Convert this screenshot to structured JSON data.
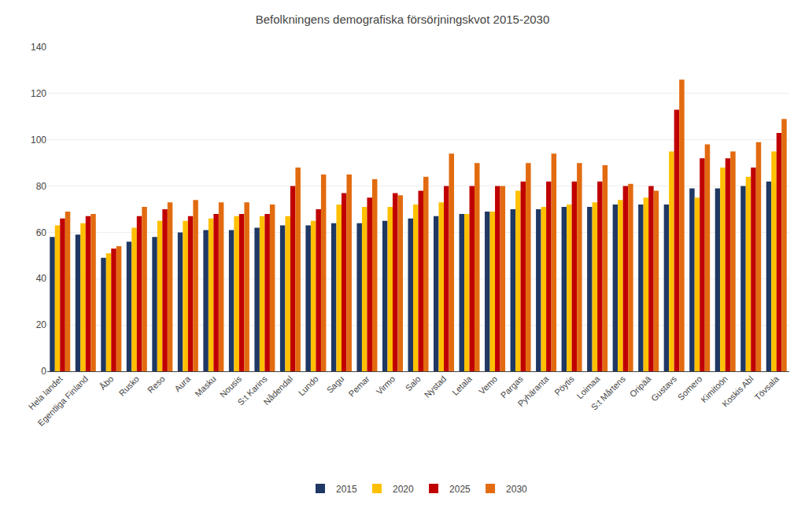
{
  "chart_data": {
    "type": "bar",
    "title": "Befolkningens demografiska försörjningskvot 2015-2030",
    "categories": [
      "Hela landet",
      "Egentliga Finland",
      "Åbo",
      "Rusko",
      "Reso",
      "Aura",
      "Masku",
      "Nousis",
      "S:t Karins",
      "Nådendal",
      "Lundo",
      "Sagu",
      "Pemar",
      "Virmo",
      "Salo",
      "Nystad",
      "Letala",
      "Vemo",
      "Pargas",
      "Pyhäranta",
      "Pöytis",
      "Loimaa",
      "S:t Mårtens",
      "Oripää",
      "Gustavs",
      "Somero",
      "Kimitoön",
      "Koskis Abl",
      "Tövsala"
    ],
    "series": [
      {
        "name": "2015",
        "color": "#1f3864",
        "values": [
          58,
          59,
          49,
          56,
          58,
          60,
          61,
          61,
          62,
          63,
          63,
          64,
          64,
          65,
          66,
          67,
          68,
          69,
          70,
          70,
          71,
          71,
          72,
          72,
          72,
          79,
          79,
          80,
          82
        ]
      },
      {
        "name": "2020",
        "color": "#ffc000",
        "values": [
          63,
          64,
          51,
          62,
          65,
          65,
          66,
          67,
          67,
          67,
          65,
          72,
          71,
          71,
          72,
          73,
          68,
          69,
          78,
          71,
          72,
          73,
          74,
          75,
          95,
          75,
          88,
          84,
          95
        ]
      },
      {
        "name": "2025",
        "color": "#c00000",
        "values": [
          66,
          67,
          53,
          67,
          70,
          67,
          68,
          68,
          68,
          80,
          70,
          77,
          75,
          77,
          78,
          80,
          80,
          80,
          82,
          82,
          82,
          82,
          80,
          80,
          113,
          92,
          92,
          88,
          103
        ]
      },
      {
        "name": "2030",
        "color": "#e26b10",
        "values": [
          69,
          68,
          54,
          71,
          73,
          74,
          73,
          73,
          72,
          88,
          85,
          85,
          83,
          76,
          84,
          94,
          90,
          80,
          90,
          94,
          90,
          89,
          81,
          78,
          126,
          98,
          95,
          99,
          109
        ]
      }
    ],
    "ylim": [
      0,
      140
    ],
    "yticks": [
      0,
      20,
      40,
      60,
      80,
      100,
      120,
      140
    ],
    "grid": true,
    "legend": "bottom"
  }
}
